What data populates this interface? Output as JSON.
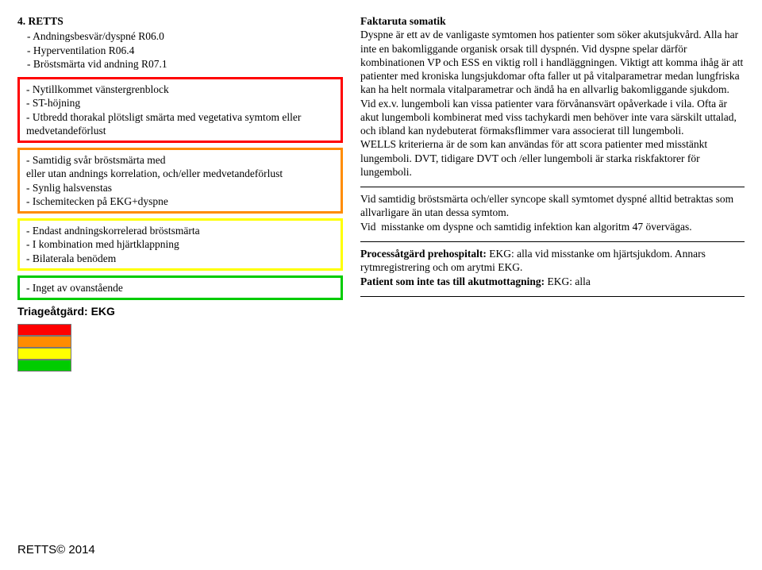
{
  "heading": "4. RETTS",
  "sub_items": [
    "- Andningsbesvär/dyspné R06.0",
    "- Hyperventilation R06.4",
    "- Bröstsmärta vid andning R07.1"
  ],
  "boxes": [
    {
      "color": "#ff0000",
      "lines": [
        "- Nytillkommet vänstergrenblock",
        "- ST-höjning",
        "- Utbredd thorakal plötsligt smärta med vegetativa symtom eller medvetandeförlust"
      ]
    },
    {
      "color": "#ff8c00",
      "lines": [
        "- Samtidig svår bröstsmärta med",
        "eller utan andnings korrelation, och/eller medvetandeförlust",
        "- Synlig halsvenstas",
        "- Ischemitecken på EKG+dyspne"
      ]
    },
    {
      "color": "#ffff00",
      "lines": [
        "- Endast andningskorrelerad bröstsmärta",
        "- I kombination med hjärtklappning",
        "- Bilaterala benödem"
      ]
    },
    {
      "color": "#00cc00",
      "lines": [
        "- Inget av ovanstående"
      ]
    }
  ],
  "triage_label": "Triageåtgärd: EKG",
  "swatch_colors": [
    "#ff0000",
    "#ff8c00",
    "#ffff00",
    "#00cc00"
  ],
  "fakta": {
    "title": "Faktaruta somatik",
    "p1": "Dyspne är ett av de vanligaste symtomen hos patienter som söker akutsjukvård. Alla har inte en bakomliggande organisk orsak till dyspnén. Vid dyspne spelar därför kombinationen VP och ESS en viktig roll i handläggningen. Viktigt att komma ihåg är att patienter med kroniska lungsjukdomar ofta faller ut på vitalparametrar medan lungfriska kan ha helt normala vitalparametrar och ändå ha en allvarlig bakomliggande sjukdom. Vid ex.v. lungemboli kan vissa patienter vara förvånansvärt opåverkade i vila. Ofta är akut lungemboli kombinerat med viss tachykardi men behöver inte vara särskilt uttalad, och ibland kan nydebuterat förmaksflimmer vara associerat till lungemboli.",
    "p2": "WELLS kriterierna är de som kan användas för att scora patienter med misstänkt lungemboli. DVT, tidigare DVT och /eller lungemboli är starka riskfaktorer för lungemboli.",
    "p3": "Vid samtidig bröstsmärta och/eller syncope skall symtomet dyspné alltid betraktas som allvarligare än utan dessa symtom.",
    "p4": "Vid  misstanke om dyspne och samtidig infektion kan algoritm 47 övervägas."
  },
  "process": {
    "line1a": "Processåtgärd prehospitalt: ",
    "line1b": "EKG: alla vid misstanke om hjärtsjukdom. Annars rytmregistrering och om arytmi EKG.",
    "line2a": "Patient som inte tas till akutmottagning: ",
    "line2b": "EKG: alla"
  },
  "footer": "RETTS© 2014"
}
